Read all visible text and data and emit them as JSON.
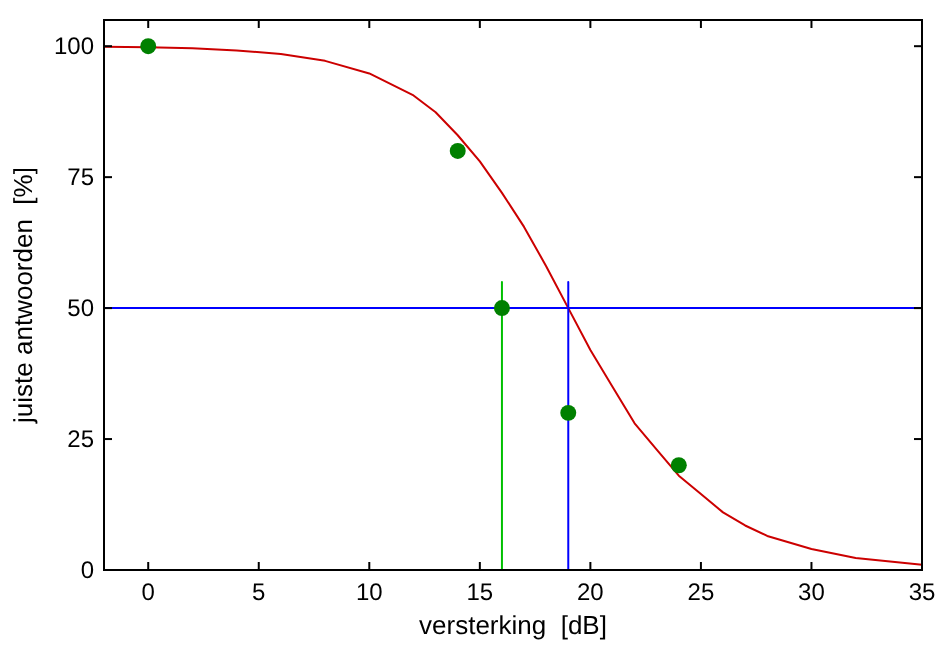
{
  "chart_data": {
    "type": "scatter",
    "xlabel": "versterking  [dB]",
    "ylabel": "juiste antwoorden  [%]",
    "xlim": [
      -2,
      35
    ],
    "ylim": [
      0,
      105
    ],
    "xticks": [
      0,
      5,
      10,
      15,
      20,
      25,
      30,
      35
    ],
    "yticks": [
      0,
      25,
      50,
      75,
      100
    ],
    "marker": "circle",
    "grid": false,
    "ref_lines": [
      {
        "axis": "y",
        "value": 50,
        "color": "#0000ff"
      }
    ],
    "series": [
      {
        "type": "line",
        "marker": "none",
        "color": "#cc0000",
        "x": [
          -2,
          0,
          2,
          4,
          6,
          8,
          10,
          12,
          13,
          14,
          15,
          16,
          17,
          18,
          19,
          20,
          21,
          22,
          23,
          24,
          25,
          26,
          27,
          28,
          30,
          32,
          35
        ],
        "values": [
          99.9,
          99.8,
          99.6,
          99.2,
          98.5,
          97.2,
          94.8,
          90.6,
          87.4,
          83,
          78,
          72,
          65.5,
          58,
          50,
          42,
          35,
          28,
          23,
          18,
          14.5,
          11,
          8.5,
          6.5,
          4,
          2.3,
          1
        ]
      },
      {
        "type": "line",
        "marker": "none",
        "color": "#00c000",
        "x": [
          16,
          16
        ],
        "values": [
          0,
          55
        ]
      },
      {
        "type": "line",
        "marker": "none",
        "color": "#0000ff",
        "x": [
          19,
          19
        ],
        "values": [
          0,
          55
        ]
      },
      {
        "color": "#008000",
        "x": [
          0,
          14,
          16,
          19,
          24
        ],
        "values": [
          100,
          80,
          50,
          30,
          20
        ]
      }
    ]
  }
}
